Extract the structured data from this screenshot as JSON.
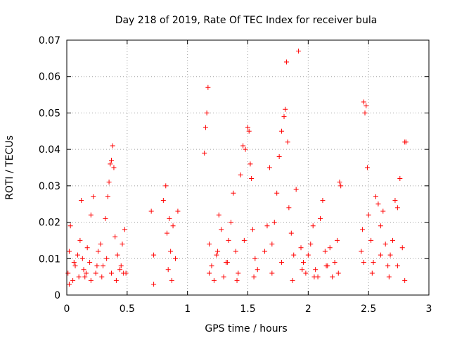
{
  "chart_data": {
    "type": "scatter",
    "title": "Day 218 of 2019, Rate Of TEC Index for receiver bula",
    "xlabel": "GPS time / hours",
    "ylabel": "ROTI / TECUs",
    "xlim": [
      0,
      3
    ],
    "ylim": [
      0,
      0.07
    ],
    "grid": true,
    "marker": "plus",
    "marker_color": "#ff0000",
    "x_ticks": [
      0,
      0.5,
      1,
      1.5,
      2,
      2.5,
      3
    ],
    "x_tick_labels": [
      "0",
      "0.5",
      "1",
      "1.5",
      "2",
      "2.5",
      "3"
    ],
    "y_ticks": [
      0,
      0.01,
      0.02,
      0.03,
      0.04,
      0.05,
      0.06,
      0.07
    ],
    "y_tick_labels": [
      "0",
      "0.01",
      "0.02",
      "0.03",
      "0.04",
      "0.05",
      "0.06",
      "0.07"
    ],
    "series": [
      {
        "name": "ROTI",
        "x": [
          0.01,
          0.02,
          0.03,
          0.05,
          0.07,
          0.09,
          0.11,
          0.12,
          0.14,
          0.15,
          0.17,
          0.19,
          0.2,
          0.22,
          0.24,
          0.26,
          0.28,
          0.3,
          0.32,
          0.34,
          0.35,
          0.36,
          0.37,
          0.38,
          0.39,
          0.4,
          0.42,
          0.44,
          0.46,
          0.48,
          0.49,
          0.02,
          0.06,
          0.1,
          0.13,
          0.16,
          0.2,
          0.25,
          0.29,
          0.33,
          0.37,
          0.41,
          0.45,
          0.47,
          0.7,
          0.72,
          0.72,
          0.8,
          0.82,
          0.83,
          0.84,
          0.85,
          0.86,
          0.87,
          0.88,
          0.9,
          0.92,
          1.14,
          1.15,
          1.16,
          1.17,
          1.18,
          1.2,
          1.22,
          1.24,
          1.26,
          1.28,
          1.3,
          1.32,
          1.34,
          1.36,
          1.38,
          1.4,
          1.42,
          1.44,
          1.46,
          1.48,
          1.5,
          1.51,
          1.52,
          1.53,
          1.54,
          1.56,
          1.58,
          1.18,
          1.25,
          1.33,
          1.41,
          1.47,
          1.55,
          1.64,
          1.66,
          1.68,
          1.7,
          1.72,
          1.74,
          1.76,
          1.78,
          1.8,
          1.81,
          1.82,
          1.83,
          1.84,
          1.86,
          1.88,
          1.9,
          1.92,
          1.94,
          1.96,
          1.98,
          2.0,
          2.02,
          2.04,
          2.06,
          2.08,
          2.1,
          2.12,
          2.14,
          2.16,
          2.18,
          2.2,
          2.22,
          2.24,
          2.26,
          2.27,
          1.7,
          1.78,
          1.87,
          1.95,
          2.05,
          2.15,
          2.25,
          2.44,
          2.45,
          2.46,
          2.47,
          2.48,
          2.49,
          2.5,
          2.52,
          2.54,
          2.56,
          2.58,
          2.6,
          2.62,
          2.64,
          2.66,
          2.68,
          2.7,
          2.72,
          2.74,
          2.76,
          2.78,
          2.8,
          2.81,
          2.46,
          2.53,
          2.6,
          2.67,
          2.74,
          2.8
        ],
        "y": [
          0.006,
          0.012,
          0.019,
          0.004,
          0.008,
          0.011,
          0.015,
          0.026,
          0.007,
          0.005,
          0.013,
          0.009,
          0.022,
          0.027,
          0.006,
          0.012,
          0.014,
          0.008,
          0.021,
          0.027,
          0.031,
          0.036,
          0.037,
          0.041,
          0.035,
          0.016,
          0.011,
          0.007,
          0.014,
          0.018,
          0.006,
          0.003,
          0.009,
          0.005,
          0.01,
          0.006,
          0.004,
          0.008,
          0.005,
          0.01,
          0.006,
          0.004,
          0.008,
          0.006,
          0.023,
          0.011,
          0.003,
          0.026,
          0.03,
          0.017,
          0.007,
          0.021,
          0.012,
          0.004,
          0.019,
          0.01,
          0.023,
          0.039,
          0.046,
          0.05,
          0.057,
          0.014,
          0.008,
          0.004,
          0.011,
          0.022,
          0.018,
          0.005,
          0.009,
          0.015,
          0.02,
          0.028,
          0.012,
          0.006,
          0.033,
          0.041,
          0.04,
          0.046,
          0.045,
          0.036,
          0.032,
          0.018,
          0.01,
          0.007,
          0.006,
          0.012,
          0.009,
          0.004,
          0.015,
          0.005,
          0.012,
          0.019,
          0.035,
          0.014,
          0.02,
          0.028,
          0.038,
          0.045,
          0.049,
          0.051,
          0.064,
          0.042,
          0.024,
          0.017,
          0.011,
          0.029,
          0.067,
          0.013,
          0.009,
          0.006,
          0.011,
          0.014,
          0.019,
          0.007,
          0.005,
          0.021,
          0.026,
          0.012,
          0.008,
          0.013,
          0.005,
          0.009,
          0.015,
          0.031,
          0.03,
          0.006,
          0.009,
          0.004,
          0.007,
          0.005,
          0.008,
          0.006,
          0.012,
          0.018,
          0.053,
          0.05,
          0.052,
          0.035,
          0.022,
          0.015,
          0.009,
          0.027,
          0.025,
          0.019,
          0.023,
          0.014,
          0.008,
          0.011,
          0.015,
          0.026,
          0.024,
          0.032,
          0.013,
          0.042,
          0.042,
          0.009,
          0.006,
          0.011,
          0.005,
          0.008,
          0.004
        ]
      }
    ]
  }
}
